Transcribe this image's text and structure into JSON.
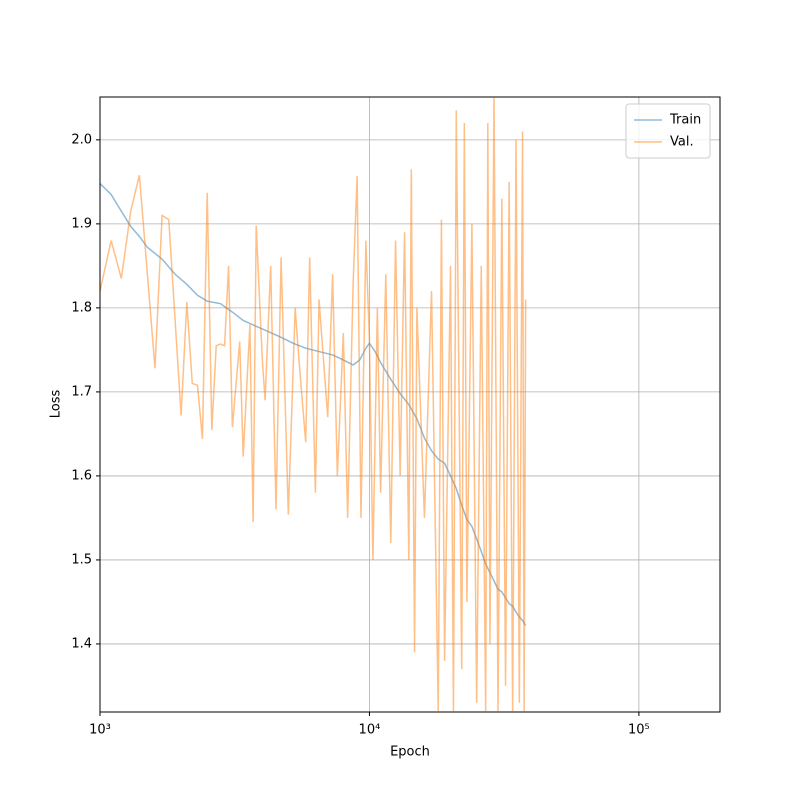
{
  "chart_data": {
    "type": "line",
    "xlabel": "Epoch",
    "ylabel": "Loss",
    "xscale": "log",
    "grid": true,
    "legend": "upper right",
    "xlim": [
      1000,
      200000
    ],
    "ylim": [
      1.319,
      2.051
    ],
    "xticks": [
      {
        "value": 1000,
        "label": "10³"
      },
      {
        "value": 10000,
        "label": "10⁴"
      },
      {
        "value": 100000,
        "label": "10⁵"
      }
    ],
    "yticks": [
      1.4,
      1.5,
      1.6,
      1.7,
      1.8,
      1.9,
      {
        "value": 2,
        "label": "2.0"
      }
    ],
    "series": [
      {
        "name": "Train",
        "color": "#1f77b4",
        "x": [
          1000,
          1100,
          1200,
          1300,
          1400,
          1500,
          1700,
          1900,
          2100,
          2300,
          2500,
          2800,
          3100,
          3400,
          3800,
          4200,
          4700,
          5200,
          5800,
          6500,
          7300,
          8000,
          8700,
          9200,
          9700,
          10000,
          10500,
          11000,
          12000,
          13000,
          14000,
          15000,
          16000,
          17000,
          18000,
          19000,
          20000,
          21000,
          22000,
          23000,
          24000,
          25000,
          26000,
          27000,
          28000,
          29000,
          30000,
          31000,
          32000,
          33000,
          34000,
          35000,
          36000,
          37000,
          38000
        ],
        "values": [
          1.948,
          1.935,
          1.915,
          1.897,
          1.885,
          1.872,
          1.858,
          1.84,
          1.828,
          1.815,
          1.808,
          1.805,
          1.795,
          1.785,
          1.778,
          1.772,
          1.765,
          1.758,
          1.752,
          1.748,
          1.744,
          1.738,
          1.732,
          1.738,
          1.752,
          1.758,
          1.748,
          1.735,
          1.715,
          1.698,
          1.685,
          1.668,
          1.645,
          1.63,
          1.62,
          1.615,
          1.6,
          1.585,
          1.565,
          1.548,
          1.54,
          1.525,
          1.51,
          1.495,
          1.485,
          1.475,
          1.465,
          1.462,
          1.455,
          1.448,
          1.445,
          1.438,
          1.432,
          1.428,
          1.422
        ]
      },
      {
        "name": "Val.",
        "color": "#ff7f0e",
        "x": [
          1000,
          1100,
          1200,
          1300,
          1400,
          1600,
          1700,
          1800,
          2000,
          2100,
          2200,
          2300,
          2400,
          2500,
          2600,
          2700,
          2800,
          2900,
          3000,
          3100,
          3300,
          3400,
          3600,
          3700,
          3800,
          4000,
          4100,
          4300,
          4500,
          4700,
          5000,
          5300,
          5500,
          5800,
          6000,
          6300,
          6500,
          7000,
          7300,
          7600,
          8000,
          8300,
          8700,
          9000,
          9300,
          9700,
          10000,
          10300,
          10700,
          11000,
          11500,
          12000,
          12500,
          13000,
          13500,
          14000,
          14300,
          14700,
          15000,
          16000,
          17000,
          18000,
          18500,
          19000,
          20000,
          20500,
          21000,
          22000,
          22500,
          23000,
          24000,
          25000,
          26000,
          27000,
          27500,
          28000,
          29000,
          30000,
          31000,
          32000,
          33000,
          34000,
          35000,
          36000,
          37000,
          37500,
          38000
        ],
        "values": [
          1.82,
          1.88,
          1.835,
          1.915,
          1.958,
          1.728,
          1.91,
          1.905,
          1.672,
          1.807,
          1.71,
          1.708,
          1.644,
          1.937,
          1.655,
          1.755,
          1.757,
          1.755,
          1.85,
          1.658,
          1.76,
          1.623,
          1.78,
          1.545,
          1.898,
          1.74,
          1.69,
          1.85,
          1.56,
          1.86,
          1.554,
          1.8,
          1.73,
          1.64,
          1.86,
          1.58,
          1.81,
          1.67,
          1.84,
          1.6,
          1.77,
          1.55,
          1.83,
          1.957,
          1.55,
          1.88,
          1.76,
          1.5,
          1.8,
          1.58,
          1.84,
          1.52,
          1.88,
          1.6,
          1.89,
          1.5,
          1.965,
          1.39,
          1.8,
          1.55,
          1.82,
          1.32,
          1.905,
          1.38,
          1.85,
          1.32,
          2.035,
          1.37,
          2.02,
          1.45,
          1.9,
          1.33,
          1.85,
          1.32,
          2.02,
          1.4,
          2.05,
          1.32,
          1.93,
          1.35,
          1.95,
          1.32,
          2.0,
          1.33,
          2.01,
          1.32,
          1.81
        ]
      }
    ]
  }
}
